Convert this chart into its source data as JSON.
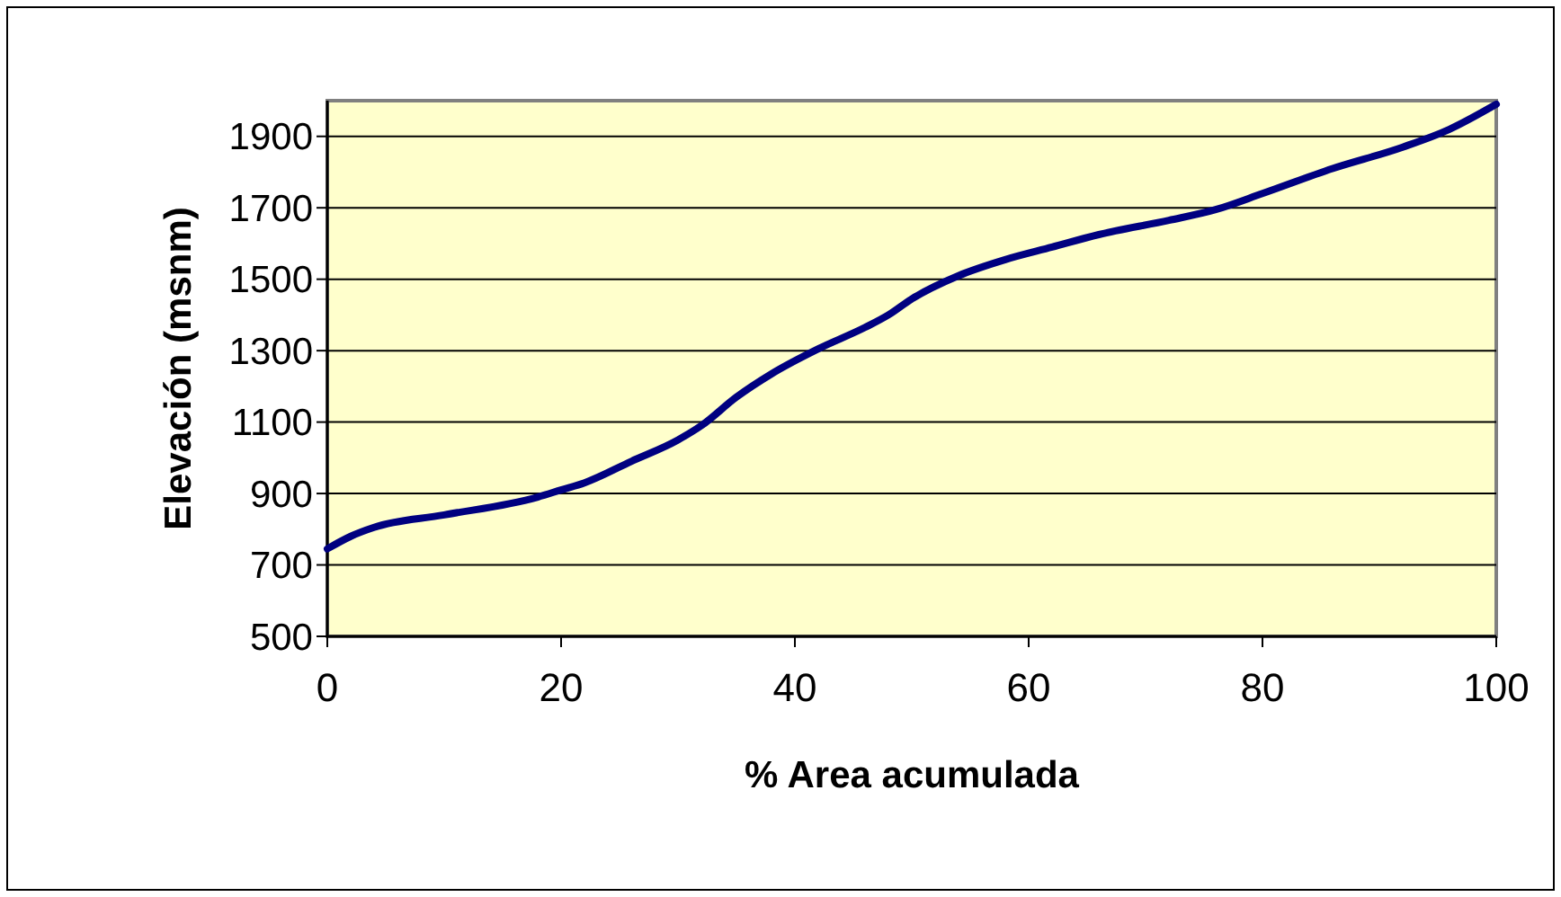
{
  "chart_data": {
    "type": "line",
    "xlabel": "% Area acumulada",
    "ylabel": "Elevación (msnm)",
    "x": [
      0,
      2,
      4,
      10,
      18,
      20,
      22,
      26,
      30,
      32,
      35,
      38,
      42,
      46,
      48,
      50,
      54,
      58,
      62,
      66,
      72,
      76,
      80,
      86,
      92,
      96,
      100
    ],
    "series": [
      {
        "color": "#000080",
        "values": [
          745,
          780,
          805,
          840,
          890,
          910,
          930,
          990,
          1050,
          1090,
          1170,
          1235,
          1305,
          1365,
          1400,
          1445,
          1510,
          1555,
          1590,
          1625,
          1665,
          1695,
          1740,
          1810,
          1870,
          1920,
          1990
        ]
      }
    ],
    "xlim": [
      0,
      100
    ],
    "xticks": [
      0,
      20,
      40,
      60,
      80,
      100
    ],
    "ylim": [
      500,
      2000
    ],
    "yticks": [
      500,
      700,
      900,
      1100,
      1300,
      1500,
      1700,
      1900
    ],
    "grid": "y",
    "marker": "none",
    "line_style": "solid"
  }
}
